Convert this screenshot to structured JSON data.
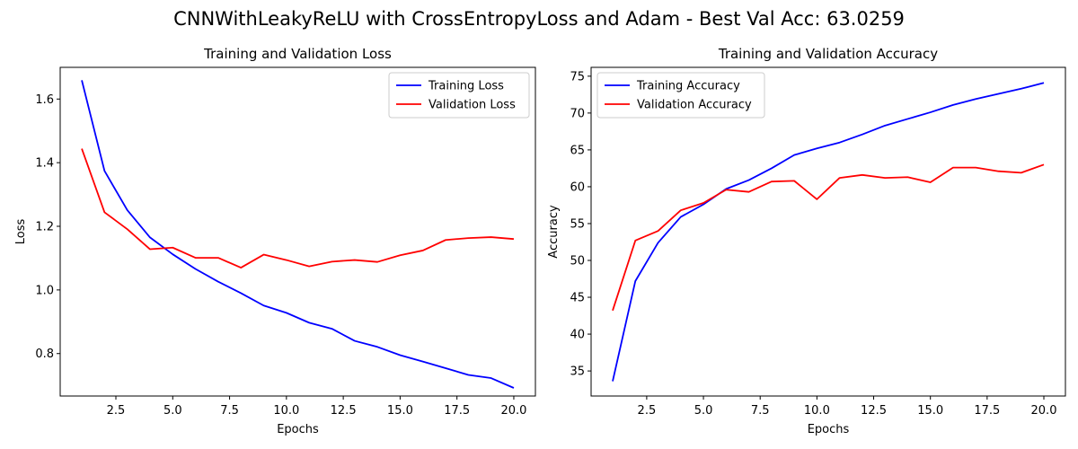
{
  "suptitle": "CNNWithLeakyReLU with CrossEntropyLoss and Adam - Best Val Acc: 63.0259",
  "colors": {
    "blue": "#0000ff",
    "red": "#ff0000"
  },
  "chart_data": [
    {
      "type": "line",
      "title": "Training and Validation Loss",
      "xlabel": "Epochs",
      "ylabel": "Loss",
      "x": [
        1,
        2,
        3,
        4,
        5,
        6,
        7,
        8,
        9,
        10,
        11,
        12,
        13,
        14,
        15,
        16,
        17,
        18,
        19,
        20
      ],
      "xlim": [
        0.05,
        20.95
      ],
      "ylim": [
        0.6666,
        1.6996
      ],
      "xticks": [
        2.5,
        5.0,
        7.5,
        10.0,
        12.5,
        15.0,
        17.5,
        20.0
      ],
      "xtick_labels": [
        "2.5",
        "5.0",
        "7.5",
        "10.0",
        "12.5",
        "15.0",
        "17.5",
        "20.0"
      ],
      "yticks": [
        0.8,
        1.0,
        1.2,
        1.4,
        1.6
      ],
      "ytick_labels": [
        "0.8",
        "1.0",
        "1.2",
        "1.4",
        "1.6"
      ],
      "legend_position": "top-right",
      "grid": false,
      "series": [
        {
          "name": "Training Loss",
          "color": "#0000ff",
          "values": [
            1.659,
            1.374,
            1.251,
            1.165,
            1.112,
            1.066,
            1.026,
            0.99,
            0.951,
            0.928,
            0.897,
            0.878,
            0.84,
            0.821,
            0.795,
            0.775,
            0.754,
            0.733,
            0.723,
            0.692
          ]
        },
        {
          "name": "Validation Loss",
          "color": "#ff0000",
          "values": [
            1.444,
            1.244,
            1.191,
            1.128,
            1.133,
            1.101,
            1.101,
            1.07,
            1.111,
            1.094,
            1.074,
            1.089,
            1.094,
            1.088,
            1.109,
            1.124,
            1.157,
            1.163,
            1.166,
            1.16
          ]
        }
      ]
    },
    {
      "type": "line",
      "title": "Training and Validation Accuracy",
      "xlabel": "Epochs",
      "ylabel": "Accuracy",
      "x": [
        1,
        2,
        3,
        4,
        5,
        6,
        7,
        8,
        9,
        10,
        11,
        12,
        13,
        14,
        15,
        16,
        17,
        18,
        19,
        20
      ],
      "xlim": [
        0.05,
        20.95
      ],
      "ylim": [
        31.6,
        76.2
      ],
      "xticks": [
        2.5,
        5.0,
        7.5,
        10.0,
        12.5,
        15.0,
        17.5,
        20.0
      ],
      "xtick_labels": [
        "2.5",
        "5.0",
        "7.5",
        "10.0",
        "12.5",
        "15.0",
        "17.5",
        "20.0"
      ],
      "yticks": [
        35,
        40,
        45,
        50,
        55,
        60,
        65,
        70,
        75
      ],
      "ytick_labels": [
        "35",
        "40",
        "45",
        "50",
        "55",
        "60",
        "65",
        "70",
        "75"
      ],
      "legend_position": "top-left",
      "grid": false,
      "series": [
        {
          "name": "Training Accuracy",
          "color": "#0000ff",
          "values": [
            33.6,
            47.2,
            52.4,
            55.9,
            57.6,
            59.7,
            60.9,
            62.5,
            64.3,
            65.2,
            66.0,
            67.1,
            68.3,
            69.2,
            70.1,
            71.1,
            71.9,
            72.6,
            73.3,
            74.1
          ]
        },
        {
          "name": "Validation Accuracy",
          "color": "#ff0000",
          "values": [
            43.2,
            52.7,
            54.0,
            56.8,
            57.8,
            59.6,
            59.3,
            60.7,
            60.8,
            58.3,
            61.2,
            61.6,
            61.2,
            61.3,
            60.6,
            62.6,
            62.6,
            62.1,
            61.9,
            63.0
          ]
        }
      ]
    }
  ]
}
